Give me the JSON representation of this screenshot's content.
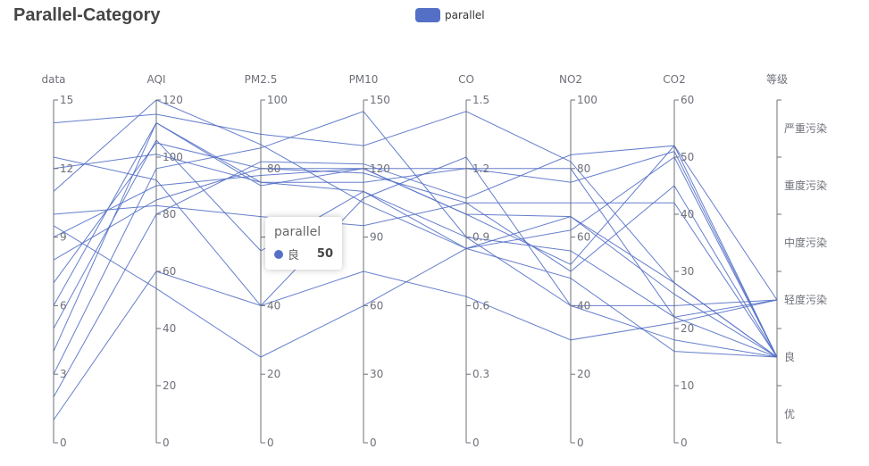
{
  "chart_data": {
    "type": "parallel",
    "title": "Parallel-Category",
    "legend": {
      "entries": [
        "parallel"
      ],
      "placement": "top-center",
      "color": "#5470c6"
    },
    "series_name": "parallel",
    "line_color": "#5470c6",
    "axes": [
      {
        "name": "data",
        "type": "value",
        "min": 0,
        "max": 15,
        "ticks": [
          0,
          3,
          6,
          9,
          12,
          15
        ],
        "tick_labels": [
          "0",
          "3",
          "6",
          "9",
          "12",
          "15"
        ]
      },
      {
        "name": "AQI",
        "type": "value",
        "min": 0,
        "max": 120,
        "ticks": [
          0,
          20,
          40,
          60,
          80,
          100,
          120
        ],
        "tick_labels": [
          "0",
          "20",
          "40",
          "60",
          "80",
          "100",
          "120"
        ]
      },
      {
        "name": "PM2.5",
        "type": "value",
        "min": 0,
        "max": 100,
        "ticks": [
          0,
          20,
          40,
          60,
          80,
          100
        ],
        "tick_labels": [
          "0",
          "20",
          "40",
          "60",
          "80",
          "100"
        ]
      },
      {
        "name": "PM10",
        "type": "value",
        "min": 0,
        "max": 150,
        "ticks": [
          0,
          30,
          60,
          90,
          120,
          150
        ],
        "tick_labels": [
          "0",
          "30",
          "60",
          "90",
          "120",
          "150"
        ]
      },
      {
        "name": "CO",
        "type": "value",
        "min": 0,
        "max": 1.5,
        "ticks": [
          0,
          0.3,
          0.6,
          0.9,
          1.2,
          1.5
        ],
        "tick_labels": [
          "0",
          "0.3",
          "0.6",
          "0.9",
          "1.2",
          "1.5"
        ]
      },
      {
        "name": "NO2",
        "type": "value",
        "min": 0,
        "max": 100,
        "ticks": [
          0,
          20,
          40,
          60,
          80,
          100
        ],
        "tick_labels": [
          "0",
          "20",
          "40",
          "60",
          "80",
          "100"
        ]
      },
      {
        "name": "CO2",
        "type": "value",
        "min": 0,
        "max": 60,
        "ticks": [
          0,
          10,
          20,
          30,
          40,
          50,
          60
        ],
        "tick_labels": [
          "0",
          "10",
          "20",
          "30",
          "40",
          "50",
          "60"
        ]
      },
      {
        "name": "等级",
        "type": "category",
        "categories": [
          "优",
          "良",
          "轻度污染",
          "中度污染",
          "重度污染",
          "严重污染"
        ]
      }
    ],
    "data": [
      [
        14.0,
        115,
        90,
        130,
        1.45,
        82,
        28,
        "良"
      ],
      [
        12.0,
        101,
        76,
        110,
        0.85,
        62,
        50,
        "良"
      ],
      [
        10.0,
        83,
        66,
        95,
        1.05,
        70,
        42,
        "良"
      ],
      [
        9.0,
        90,
        78,
        120,
        1.2,
        76,
        51,
        "良"
      ],
      [
        8.0,
        85,
        80,
        118,
        1.05,
        50,
        45,
        "良"
      ],
      [
        7.0,
        105,
        80,
        120,
        1.0,
        66,
        28,
        "良"
      ],
      [
        6.0,
        112,
        75,
        120,
        1.0,
        52,
        52,
        "良"
      ],
      [
        5.0,
        106,
        56,
        110,
        0.9,
        56,
        22,
        "轻度污染"
      ],
      [
        4.0,
        112,
        76,
        114,
        1.2,
        80,
        22,
        "良"
      ],
      [
        3.0,
        96,
        86,
        145,
        0.9,
        40,
        18,
        "良"
      ],
      [
        2.0,
        80,
        82,
        122,
        1.07,
        84,
        52,
        "轻度污染"
      ],
      [
        1.0,
        60,
        40,
        75,
        0.64,
        30,
        21,
        "轻度污染"
      ],
      [
        12.5,
        92,
        40,
        107,
        1.25,
        40,
        24,
        "轻度污染"
      ],
      [
        11.0,
        120,
        87,
        105,
        0.85,
        48,
        16,
        "良"
      ],
      [
        9.5,
        54,
        25,
        60,
        0.85,
        66,
        26,
        "良"
      ]
    ]
  },
  "tooltip": {
    "title": "parallel",
    "label": "良",
    "value": "50"
  }
}
